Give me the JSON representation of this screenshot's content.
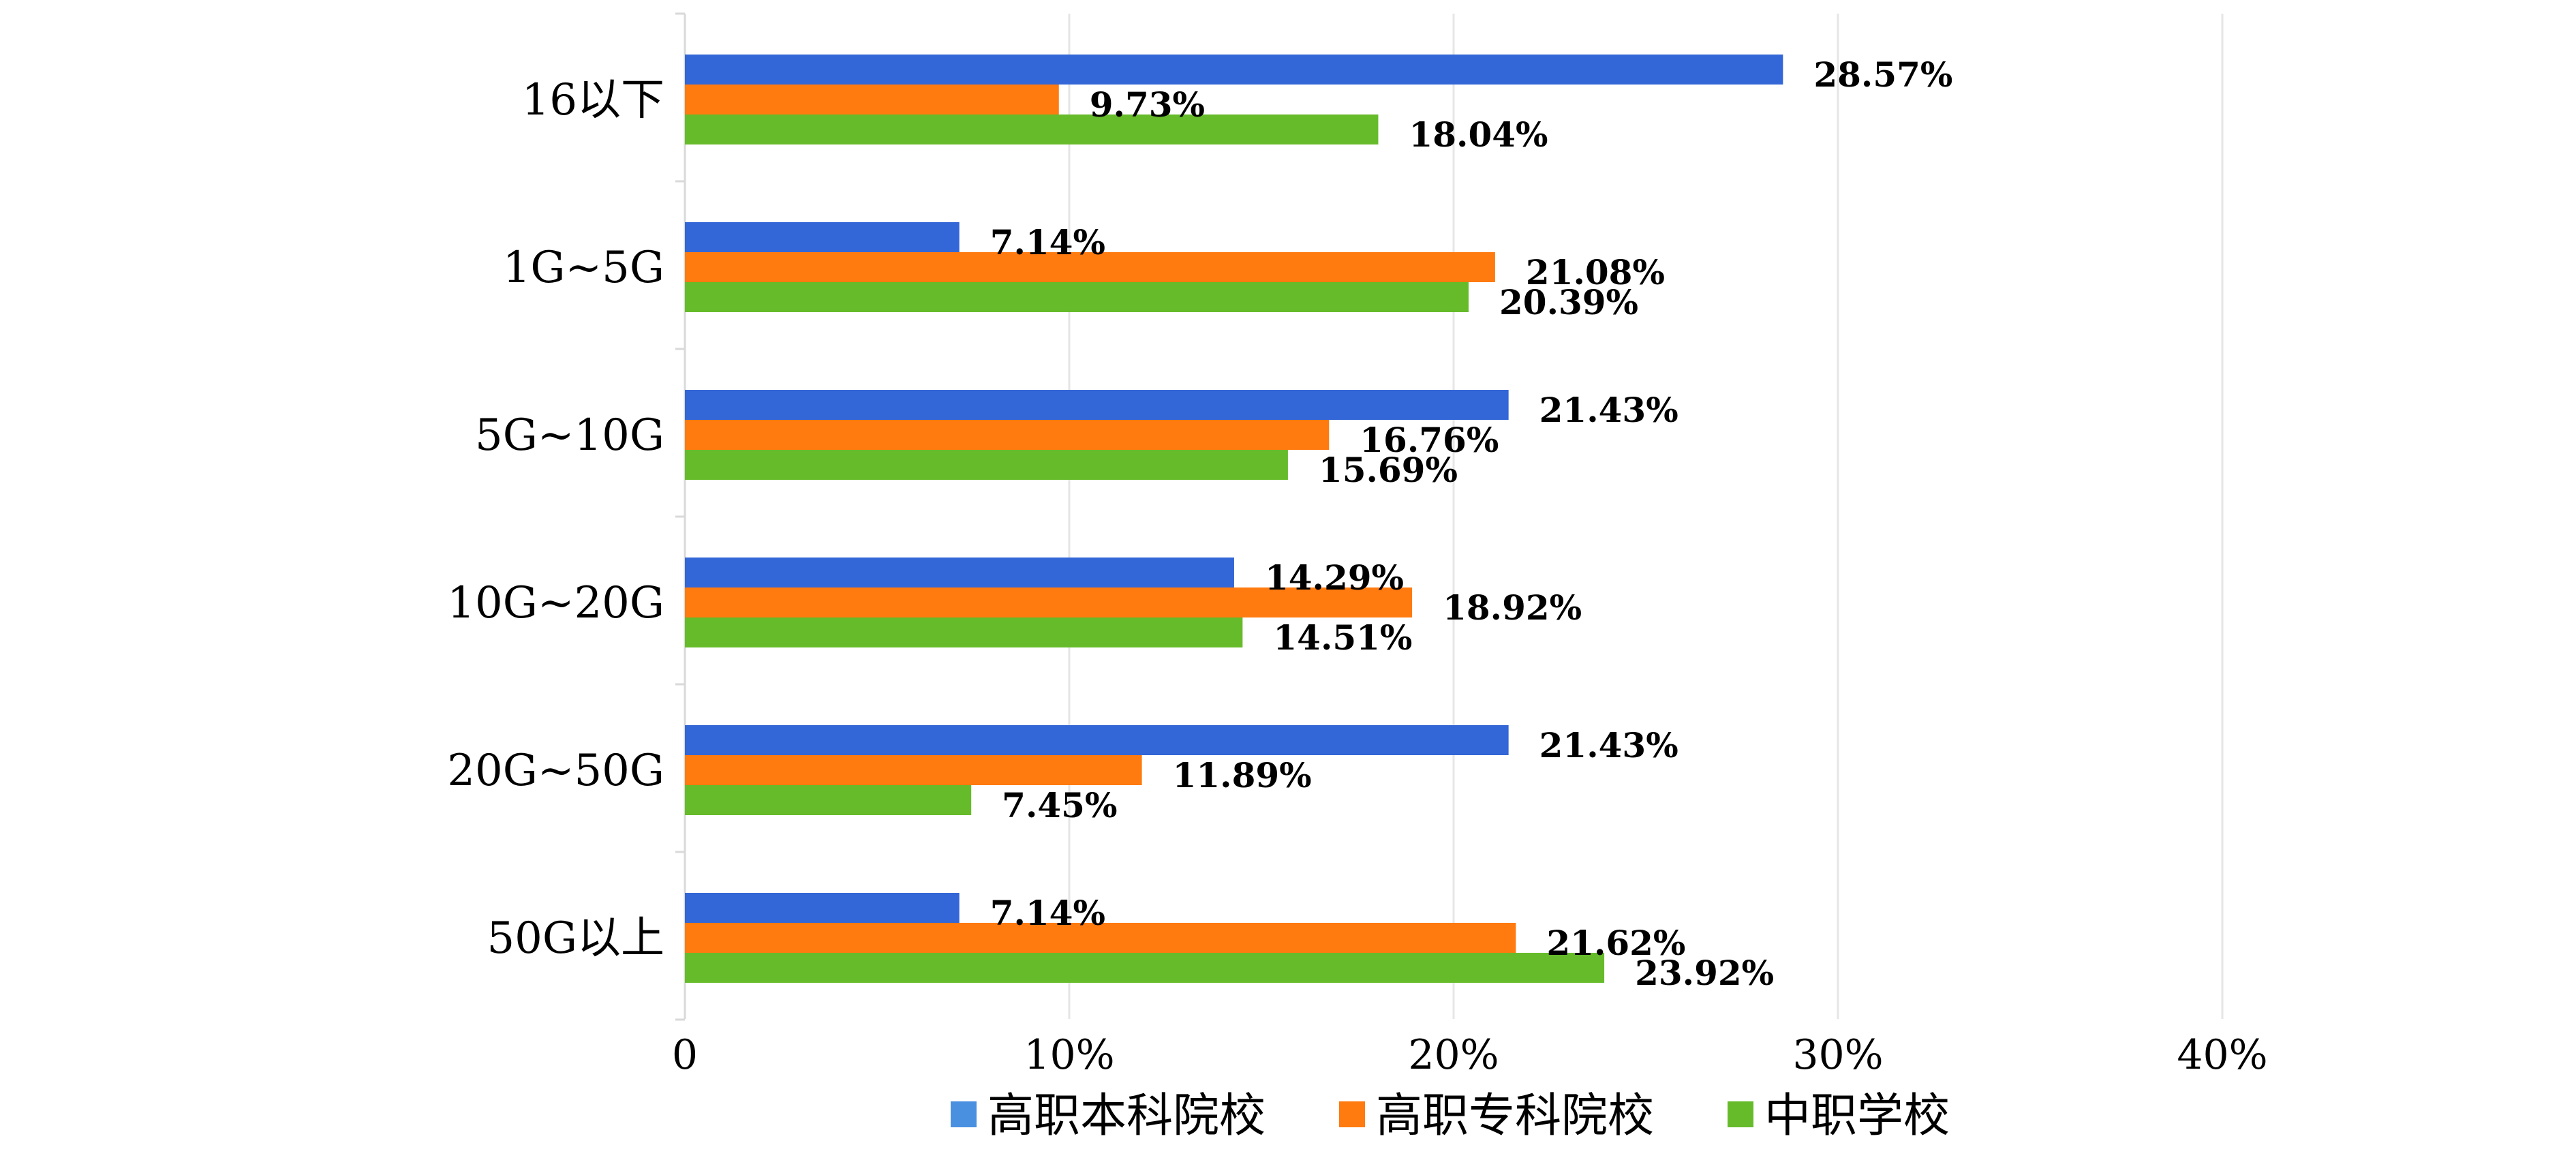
{
  "chart_data": {
    "type": "bar",
    "orientation": "horizontal",
    "categories": [
      "16以下",
      "1G~5G",
      "5G~10G",
      "10G~20G",
      "20G~50G",
      "50G以上"
    ],
    "series": [
      {
        "name": "高职本科院校",
        "color": "#3366d6",
        "legend_color": "#4a90e0",
        "values": [
          28.57,
          7.14,
          21.43,
          14.29,
          21.43,
          7.14
        ],
        "labels": [
          "28.57%",
          "7.14%",
          "21.43%",
          "14.29%",
          "21.43%",
          "7.14%"
        ]
      },
      {
        "name": "高职专科院校",
        "color": "#ff7a0f",
        "legend_color": "#ff7a0f",
        "values": [
          9.73,
          21.08,
          16.76,
          18.92,
          11.89,
          21.62
        ],
        "labels": [
          "9.73%",
          "21.08%",
          "16.76%",
          "18.92%",
          "11.89%",
          "21.62%"
        ]
      },
      {
        "name": "中职学校",
        "color": "#66bb2a",
        "legend_color": "#66bb2a",
        "values": [
          18.04,
          20.39,
          15.69,
          14.51,
          7.45,
          23.92
        ],
        "labels": [
          "18.04%",
          "20.39%",
          "15.69%",
          "14.51%",
          "7.45%",
          "23.92%"
        ]
      }
    ],
    "x_ticks": [
      "0",
      "10%",
      "20%",
      "30%",
      "40%"
    ],
    "xlim": [
      0,
      40
    ],
    "grid": "vertical",
    "legend_position": "bottom"
  }
}
